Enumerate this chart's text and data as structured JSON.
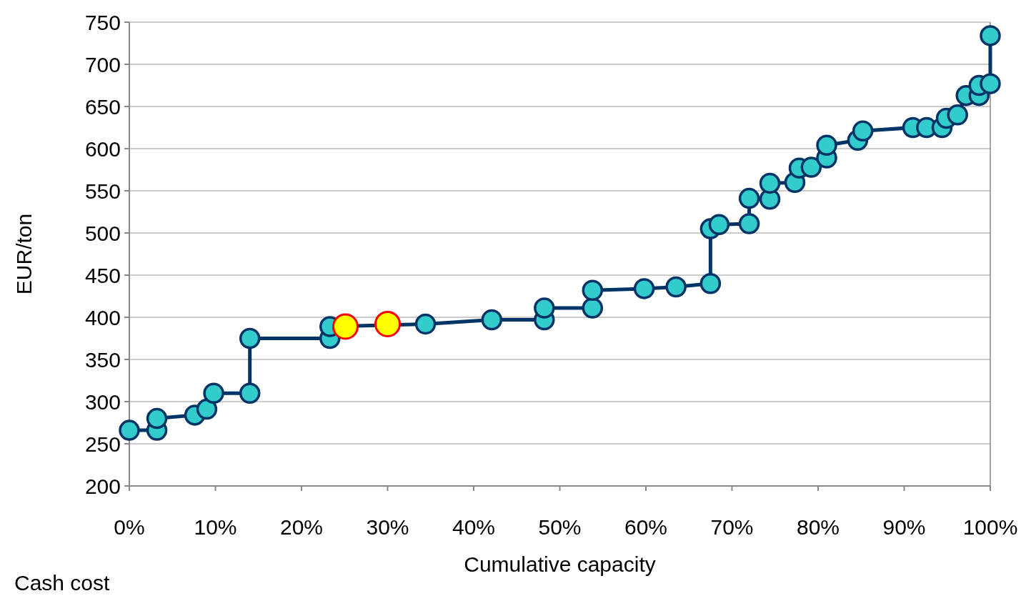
{
  "chart_data": {
    "type": "line",
    "xlabel": "Cumulative capacity",
    "ylabel": "EUR/ton",
    "annotations": [
      "Cash cost"
    ],
    "xlim": [
      0,
      100
    ],
    "xticks": [
      {
        "value": 0,
        "label": "0%"
      },
      {
        "value": 10,
        "label": "10%"
      },
      {
        "value": 20,
        "label": "20%"
      },
      {
        "value": 30,
        "label": "30%"
      },
      {
        "value": 40,
        "label": "40%"
      },
      {
        "value": 50,
        "label": "50%"
      },
      {
        "value": 60,
        "label": "60%"
      },
      {
        "value": 70,
        "label": "70%"
      },
      {
        "value": 80,
        "label": "80%"
      },
      {
        "value": 90,
        "label": "90%"
      },
      {
        "value": 100,
        "label": "100%"
      }
    ],
    "ylim": [
      200,
      750
    ],
    "yticks": [
      200,
      250,
      300,
      350,
      400,
      450,
      500,
      550,
      600,
      650,
      700,
      750
    ],
    "grid": "y",
    "marker": "circle",
    "line_style": "solid",
    "series": [
      {
        "color": "#003366",
        "x": [
          0,
          3.2,
          3.2,
          7.6,
          9.0,
          9.8,
          14.0,
          14.0,
          23.3,
          23.3,
          34.4,
          42.1,
          48.2,
          48.2,
          53.8,
          53.8,
          59.8,
          63.5,
          67.5,
          67.5,
          68.5,
          72.0,
          72.0,
          74.4,
          74.4,
          77.3,
          77.8,
          79.2,
          81.0,
          81.0,
          84.6,
          85.2,
          91.0,
          92.6,
          94.4,
          94.9,
          96.2,
          97.2,
          98.7,
          98.7,
          100,
          100
        ],
        "values": [
          266,
          266,
          280,
          284,
          291,
          310,
          310,
          375,
          375,
          389,
          392,
          397,
          397,
          411,
          411,
          432,
          434,
          436,
          440,
          505,
          510,
          511,
          541,
          540,
          559,
          560,
          577,
          578,
          589,
          604,
          610,
          621,
          625,
          625,
          625,
          636,
          640,
          663,
          663,
          675,
          677,
          734
        ]
      },
      {
        "type": "scatter",
        "color": "#ffff00",
        "x": [
          25.1,
          30.0
        ],
        "values": [
          389,
          392
        ]
      }
    ]
  }
}
